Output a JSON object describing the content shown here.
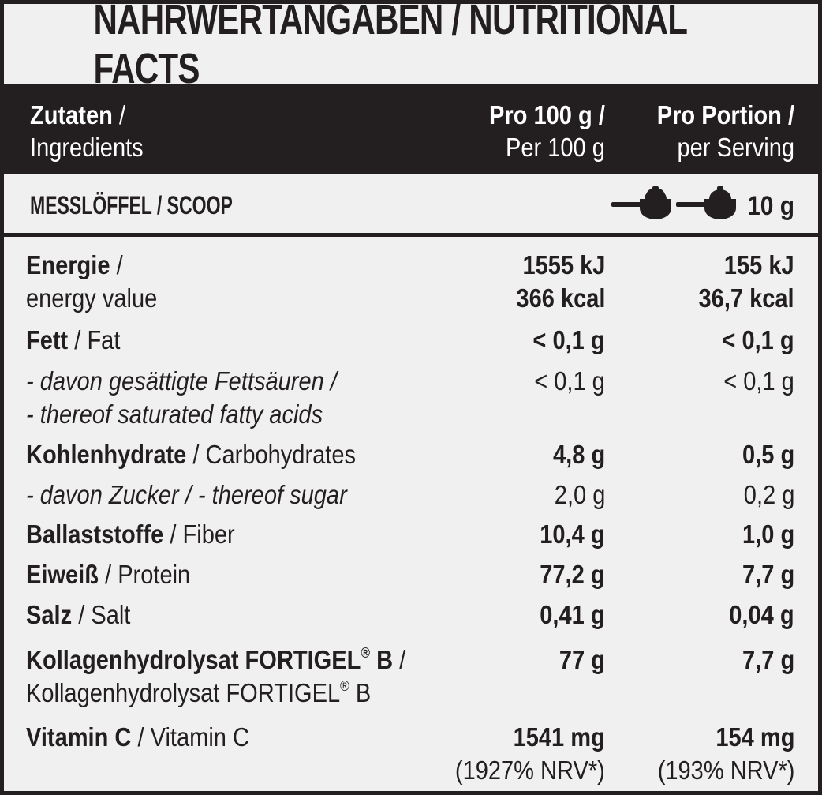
{
  "title": "NÄHRWERTANGABEN / NUTRITIONAL FACTS",
  "header": {
    "col1_de": "Zutaten",
    "col1_en": "Ingredients",
    "col2_de": "Pro 100 g",
    "col2_en": "Per 100 g",
    "col3_de": "Pro Portion",
    "col3_en": "per Serving",
    "sep": " /"
  },
  "scoop": {
    "label": "MESSLÖFFEL / SCOOP",
    "weight": "10 g",
    "icons": [
      "scoop-icon",
      "scoop-icon"
    ]
  },
  "rows": {
    "energy": {
      "de": "Energie",
      "sep": " /",
      "en": "energy value",
      "v1a": "1555 kJ",
      "v1b": "366 kcal",
      "v2a": "155 kJ",
      "v2b": "36,7 kcal"
    },
    "fat": {
      "de": "Fett",
      "en": " / Fat",
      "v1": "< 0,1 g",
      "v2": "< 0,1 g"
    },
    "sat": {
      "l1": "- davon gesättigte Fettsäuren /",
      "l2": "- thereof saturated fatty acids",
      "v1": "< 0,1 g",
      "v2": "< 0,1 g"
    },
    "carb": {
      "de": "Kohlenhydrate",
      "en": " / Carbohydrates",
      "v1": "4,8 g",
      "v2": "0,5 g"
    },
    "sugar": {
      "l1": "- davon Zucker / - thereof sugar",
      "v1": "2,0 g",
      "v2": "0,2 g"
    },
    "fiber": {
      "de": "Ballaststoffe",
      "en": " / Fiber",
      "v1": "10,4 g",
      "v2": "1,0 g"
    },
    "protein": {
      "de": "Eiweiß",
      "en": " / Protein",
      "v1": "77,2 g",
      "v2": "7,7 g"
    },
    "salt": {
      "de": "Salz",
      "en": " / Salt",
      "v1": "0,41 g",
      "v2": "0,04 g"
    },
    "collagen": {
      "de": "Kollagenhydrolysat FORTIGEL",
      "de_reg": "®",
      "de_tail": " B",
      "sep": " /",
      "en": "Kollagenhydrolysat FORTIGEL",
      "en_reg": "®",
      "en_tail": " B",
      "v1": "77 g",
      "v2": "7,7 g"
    },
    "vitc": {
      "de": "Vitamin C",
      "en": " / Vitamin C",
      "v1": "1541 mg",
      "v1_nrv": "(1927% NRV*)",
      "v2": "154 mg",
      "v2_nrv": "(193% NRV*)"
    }
  }
}
